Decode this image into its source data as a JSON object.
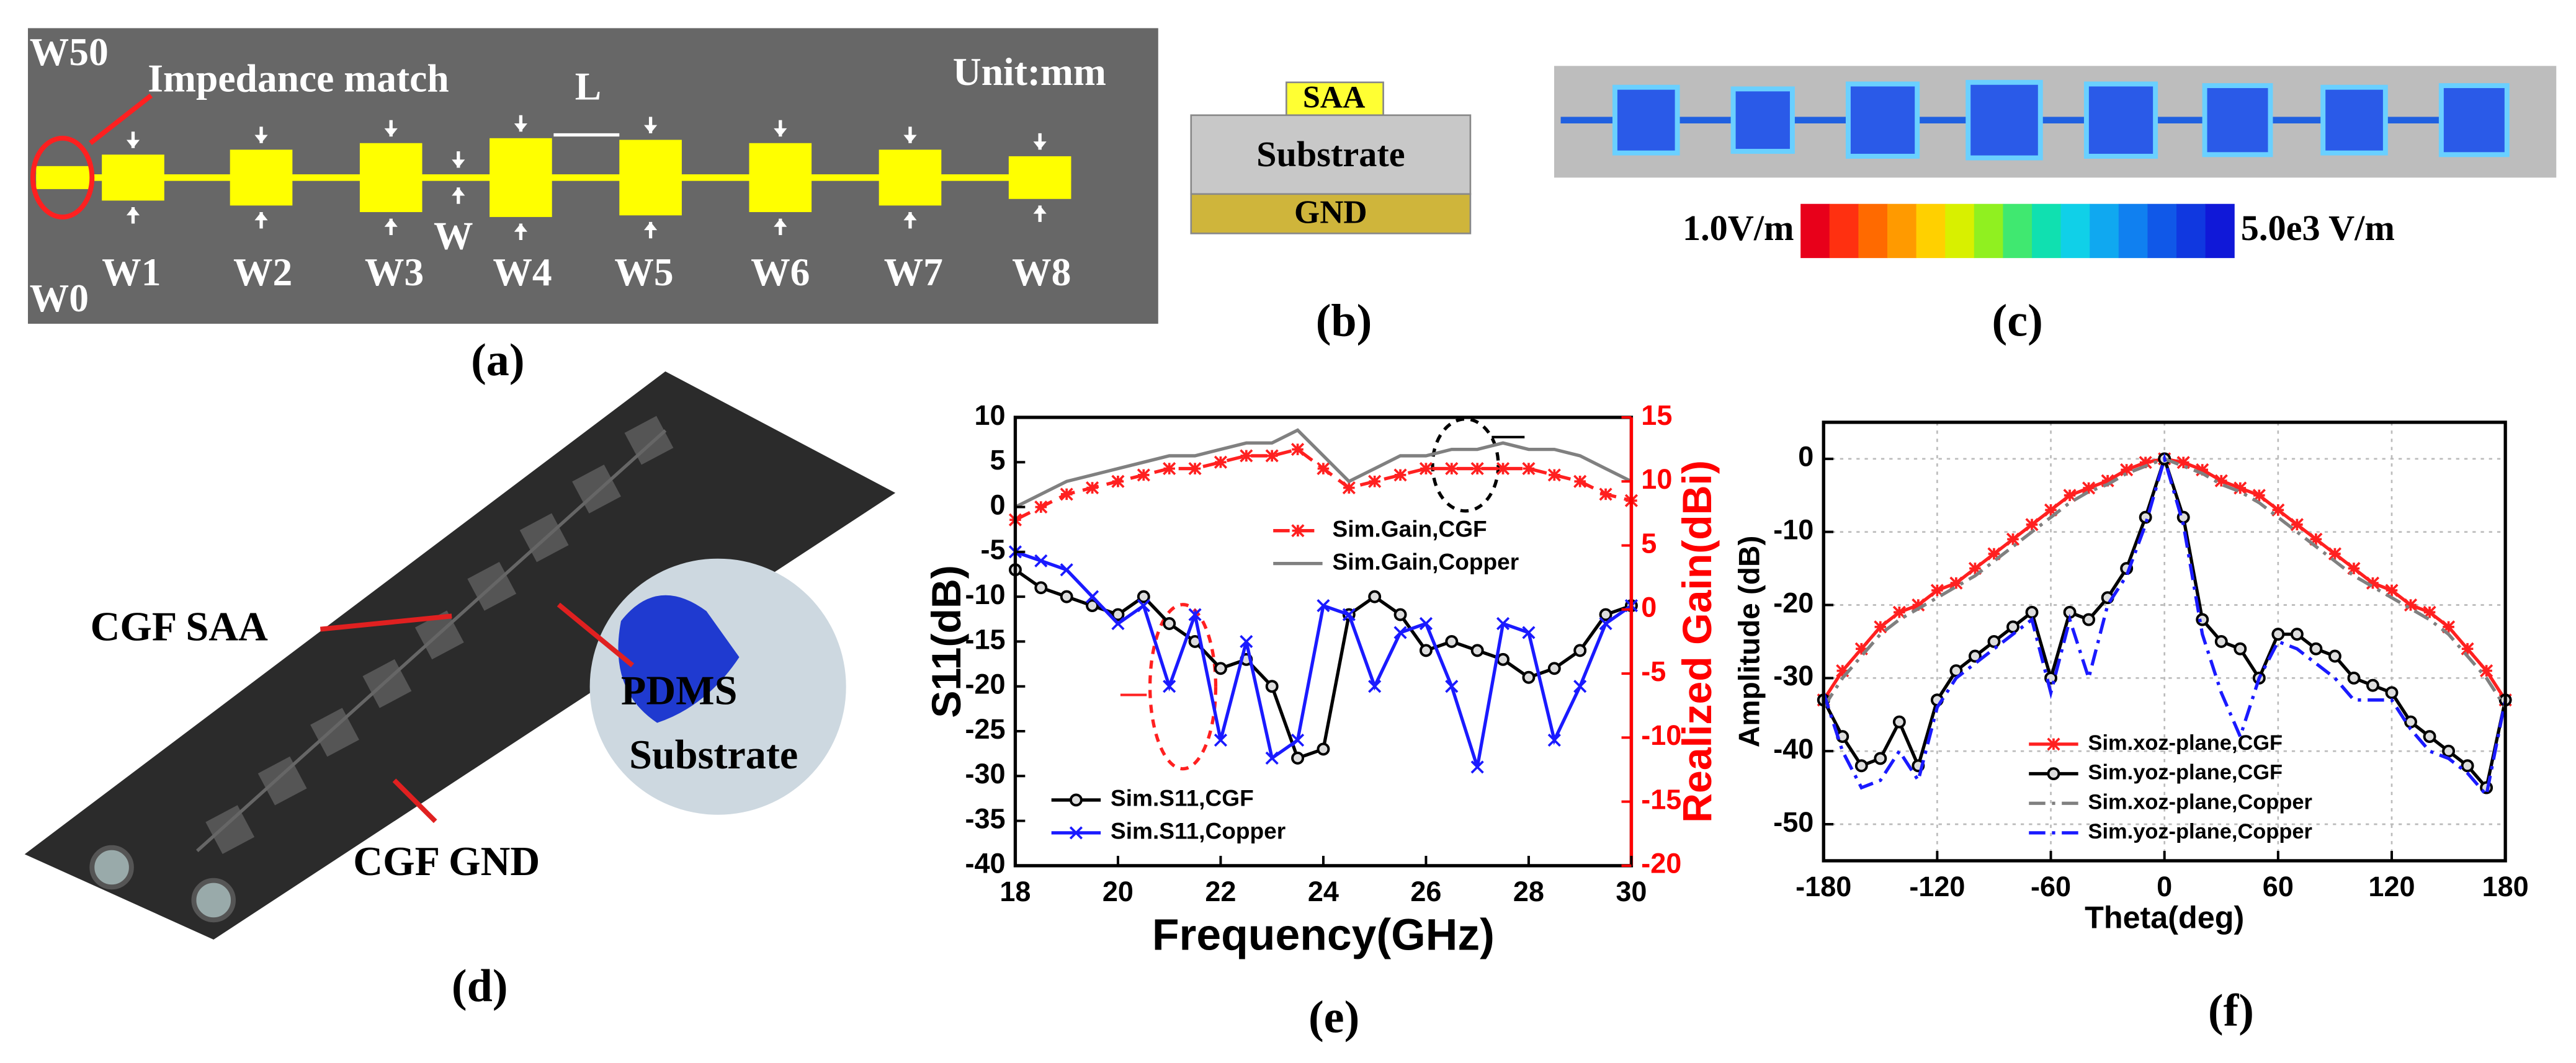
{
  "panels": {
    "a": {
      "w50": "W50",
      "match": "Impedance match",
      "length": "L",
      "unit": "Unit:mm",
      "width": "W",
      "w0": "W0",
      "widths": [
        "W1",
        "W2",
        "W3",
        "W4",
        "W5",
        "W6",
        "W7",
        "W8"
      ]
    },
    "b": {
      "top": "SAA",
      "middle": "Substrate",
      "bottom": "GND"
    },
    "c": {
      "min": "1.0V/m",
      "max": "5.0e3 V/m"
    },
    "d": {
      "saa": "CGF SAA",
      "pdms": [
        "PDMS",
        "Substrate"
      ],
      "gnd": "CGF GND"
    },
    "labels": [
      "(a)",
      "(b)",
      "(c)",
      "(d)",
      "(e)",
      "(f)"
    ]
  },
  "chart_data": [
    {
      "type": "line",
      "xlabel": "Frequency(GHz)",
      "ylabel": "S11(dB)",
      "y2label": "Realized Gain(dBi)",
      "y2color": "#ff0000",
      "x": [
        18,
        18.5,
        19,
        19.5,
        20,
        20.5,
        21,
        21.5,
        22,
        22.5,
        23,
        23.5,
        24,
        24.5,
        25,
        25.5,
        26,
        26.5,
        27,
        27.5,
        28,
        28.5,
        29,
        29.5,
        30
      ],
      "xlim": [
        18,
        30
      ],
      "xticks": [
        18,
        20,
        22,
        24,
        26,
        28,
        30
      ],
      "ylim": [
        -40,
        10
      ],
      "yticks": [
        10,
        5,
        0,
        -5,
        -10,
        -15,
        -20,
        -25,
        -30,
        -35,
        -40
      ],
      "y2lim": [
        -20,
        15
      ],
      "y2ticks": [
        15,
        10,
        5,
        0,
        -5,
        -10,
        -15,
        -20
      ],
      "grid": false,
      "legend": "lower left",
      "series": [
        {
          "name": "Sim.Gain,CGF",
          "color": "#ff2020",
          "marker": "star",
          "dash": "dash",
          "axis": "y2",
          "values": [
            7,
            8,
            9,
            9.5,
            10,
            10.5,
            11,
            11,
            11.5,
            12,
            12,
            12.5,
            11,
            9.5,
            10,
            10.5,
            11,
            11,
            11,
            11,
            11,
            10.5,
            10,
            9,
            8.5
          ]
        },
        {
          "name": "Sim.Gain,Copper",
          "color": "#808080",
          "marker": "none",
          "dash": "solid",
          "axis": "y2",
          "values": [
            8,
            9,
            10,
            10.5,
            11,
            11.5,
            12,
            12,
            12.5,
            13,
            13,
            14,
            12,
            10,
            11,
            12,
            12,
            12.5,
            12.5,
            13,
            12.5,
            12.5,
            12,
            11,
            10
          ]
        },
        {
          "name": "Sim.S11,CGF",
          "color": "#000000",
          "marker": "circle",
          "dash": "solid",
          "axis": "y",
          "values": [
            -7,
            -9,
            -10,
            -11,
            -12,
            -10,
            -13,
            -15,
            -18,
            -17,
            -20,
            -28,
            -27,
            -12,
            -10,
            -12,
            -16,
            -15,
            -16,
            -17,
            -19,
            -18,
            -16,
            -12,
            -11
          ]
        },
        {
          "name": "Sim.S11,Copper",
          "color": "#1a1aff",
          "marker": "x",
          "dash": "solid",
          "axis": "y",
          "values": [
            -5,
            -6,
            -7,
            -10,
            -13,
            -11,
            -20,
            -12,
            -26,
            -15,
            -28,
            -26,
            -11,
            -12,
            -20,
            -14,
            -13,
            -20,
            -29,
            -13,
            -14,
            -26,
            -20,
            -13,
            -11
          ]
        }
      ]
    },
    {
      "type": "line",
      "xlabel": "Theta(deg)",
      "ylabel": "Amplitude (dB)",
      "x": [
        -180,
        -170,
        -160,
        -150,
        -140,
        -130,
        -120,
        -110,
        -100,
        -90,
        -80,
        -70,
        -60,
        -50,
        -40,
        -30,
        -20,
        -10,
        0,
        10,
        20,
        30,
        40,
        50,
        60,
        70,
        80,
        90,
        100,
        110,
        120,
        130,
        140,
        150,
        160,
        170,
        180
      ],
      "xlim": [
        -180,
        180
      ],
      "xticks": [
        -180,
        -120,
        -60,
        0,
        60,
        120,
        180
      ],
      "ylim": [
        -55,
        5
      ],
      "yticks": [
        0,
        -10,
        -20,
        -30,
        -40,
        -50
      ],
      "grid": true,
      "legend": "lower center",
      "series": [
        {
          "name": "Sim.xoz-plane,CGF",
          "color": "#ff2020",
          "marker": "star",
          "dash": "solid",
          "values": [
            -33,
            -29,
            -26,
            -23,
            -21,
            -20,
            -18,
            -17,
            -15,
            -13,
            -11,
            -9,
            -7,
            -5,
            -4,
            -3,
            -1.5,
            -0.5,
            0,
            -0.5,
            -1.5,
            -3,
            -4,
            -5,
            -7,
            -9,
            -11,
            -13,
            -15,
            -17,
            -18,
            -20,
            -21,
            -23,
            -26,
            -29,
            -33
          ]
        },
        {
          "name": "Sim.yoz-plane,CGF",
          "color": "#000000",
          "marker": "circle",
          "dash": "solid",
          "values": [
            -33,
            -38,
            -42,
            -41,
            -36,
            -42,
            -33,
            -29,
            -27,
            -25,
            -23,
            -21,
            -30,
            -21,
            -22,
            -19,
            -15,
            -8,
            0,
            -8,
            -22,
            -25,
            -26,
            -30,
            -24,
            -24,
            -26,
            -27,
            -30,
            -31,
            -32,
            -36,
            -38,
            -40,
            -42,
            -45,
            -33
          ]
        },
        {
          "name": "Sim.xoz-plane,Copper",
          "color": "#808080",
          "marker": "none",
          "dash": "dashdot",
          "values": [
            -34,
            -30,
            -27,
            -24,
            -22,
            -20.5,
            -19,
            -17.5,
            -16,
            -14,
            -12,
            -10,
            -8,
            -6,
            -4.5,
            -3.5,
            -2,
            -1,
            0,
            -1,
            -2,
            -3.5,
            -4.5,
            -6,
            -8,
            -10,
            -12,
            -14,
            -16,
            -17.5,
            -19,
            -20.5,
            -22,
            -24,
            -27,
            -30,
            -34
          ]
        },
        {
          "name": "Sim.yoz-plane,Copper",
          "color": "#1a1aff",
          "marker": "none",
          "dash": "dashdot",
          "values": [
            -32,
            -40,
            -45,
            -44,
            -40,
            -44,
            -34,
            -30,
            -28,
            -26,
            -24,
            -22,
            -32,
            -22,
            -30,
            -20,
            -16,
            -9,
            0,
            -9,
            -24,
            -32,
            -38,
            -30,
            -25,
            -26,
            -28,
            -30,
            -33,
            -33,
            -33,
            -37,
            -40,
            -41,
            -43,
            -46,
            -33
          ]
        }
      ]
    }
  ]
}
